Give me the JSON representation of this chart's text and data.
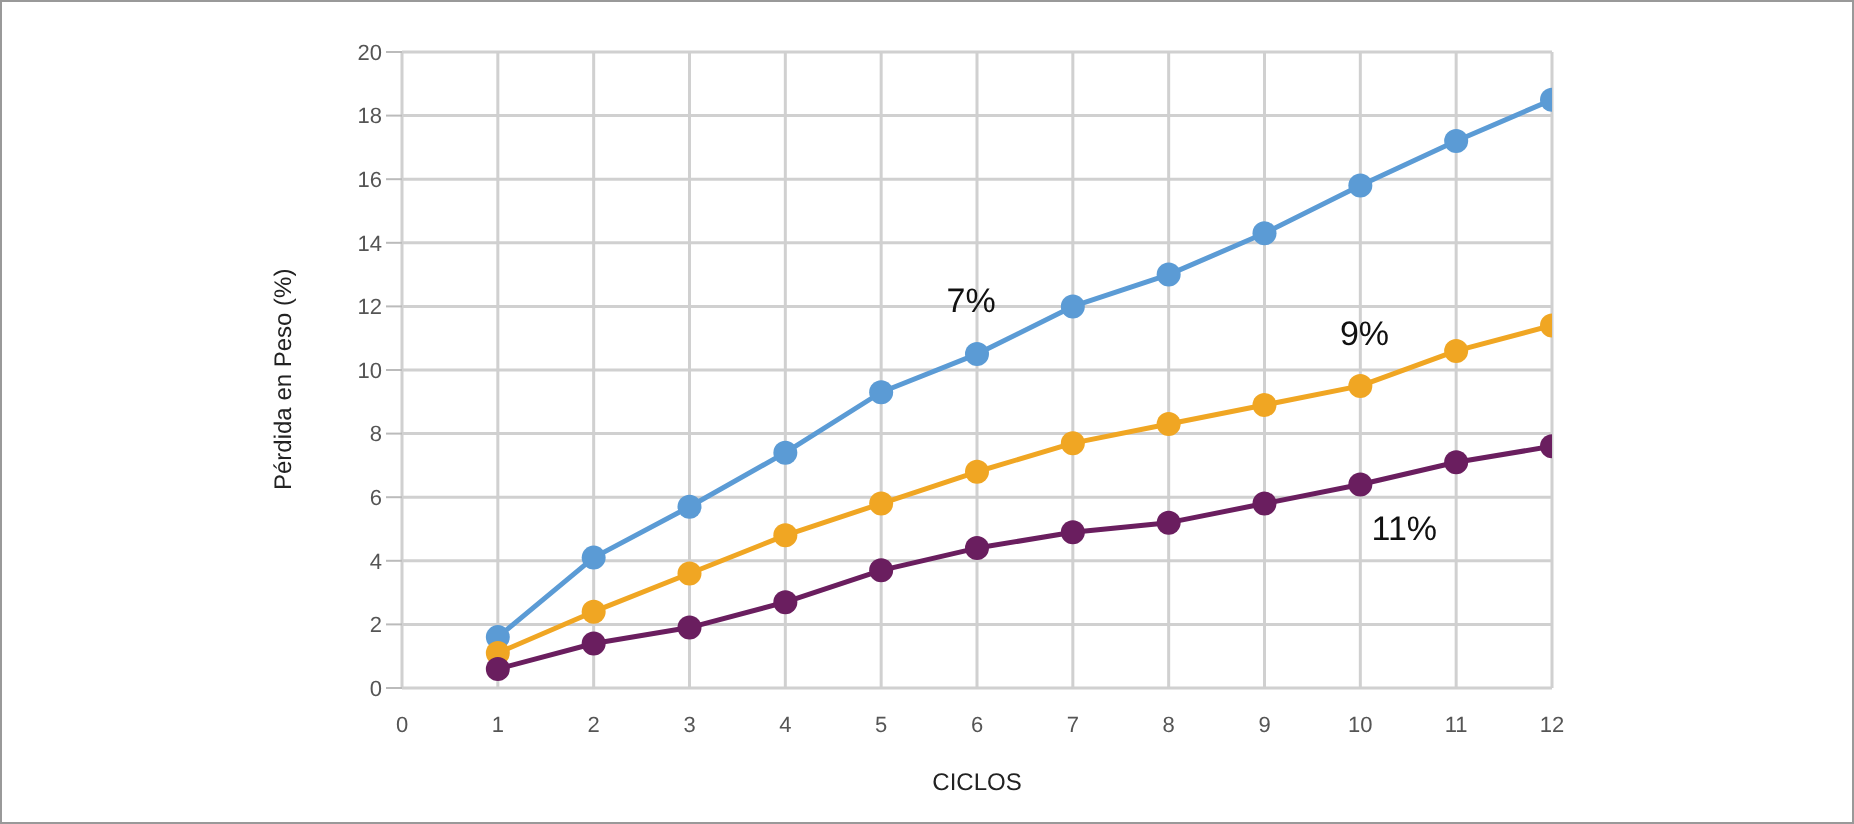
{
  "chart_data": {
    "type": "line",
    "xlabel": "CICLOS",
    "ylabel": "Pérdida en Peso (%)",
    "x": [
      1,
      2,
      3,
      4,
      5,
      6,
      7,
      8,
      9,
      10,
      11,
      12
    ],
    "series": [
      {
        "name": "7%",
        "color": "#5b9bd5",
        "values": [
          1.6,
          4.1,
          5.7,
          7.4,
          9.3,
          10.5,
          12.0,
          13.0,
          14.3,
          15.8,
          17.2,
          18.5
        ]
      },
      {
        "name": "9%",
        "color": "#f0a623",
        "values": [
          1.1,
          2.4,
          3.6,
          4.8,
          5.8,
          6.8,
          7.7,
          8.3,
          8.9,
          9.5,
          10.6,
          11.4
        ]
      },
      {
        "name": "11%",
        "color": "#6a1e5f",
        "values": [
          0.6,
          1.4,
          1.9,
          2.7,
          3.7,
          4.4,
          4.9,
          5.2,
          5.8,
          6.4,
          7.1,
          7.6
        ]
      }
    ],
    "xlim": [
      0,
      12
    ],
    "xticks": [
      0,
      1,
      2,
      3,
      4,
      5,
      6,
      7,
      8,
      9,
      10,
      11,
      12
    ],
    "ylim": [
      0,
      20
    ],
    "yticks": [
      0,
      2,
      4,
      6,
      8,
      10,
      12,
      14,
      16,
      18,
      20
    ],
    "grid": true,
    "marker": "circle",
    "line_style": "solid",
    "legend": false
  }
}
